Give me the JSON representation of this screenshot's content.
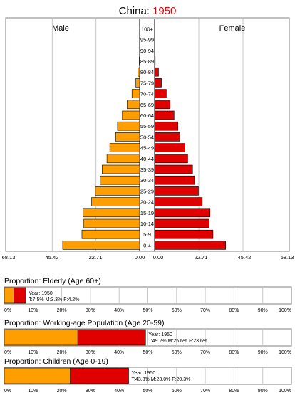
{
  "header": {
    "country": "China:",
    "year": "1950",
    "year_color": "#e00000"
  },
  "colors": {
    "male": "#ff9e00",
    "female": "#e00000",
    "bar_border": "#000000",
    "grid": "#c8c8c8"
  },
  "pyramid": {
    "male_label": "Male",
    "female_label": "Female",
    "male_ticks": [
      "68.13",
      "45.42",
      "22.71",
      "0.00"
    ],
    "female_ticks": [
      "0.00",
      "22.71",
      "45.42",
      "68.13"
    ]
  },
  "proportions": [
    {
      "title": "Proportion: Elderly (Age 60+)",
      "year_text": "Year: 1950",
      "stats_text": "T:7.5%  M:3.3%  F:4.2%"
    },
    {
      "title": "Proportion: Working-age Population (Age 20-59)",
      "year_text": "Year: 1950",
      "stats_text": "T:49.2%  M:25.6%  F:23.6%"
    },
    {
      "title": "Proportion: Children (Age 0-19)",
      "year_text": "Year: 1950",
      "stats_text": "T:43.3%  M:23.0%  F:20.3%"
    }
  ],
  "proportion_ticks": [
    "0%",
    "10%",
    "20%",
    "30%",
    "40%",
    "50%",
    "60%",
    "70%",
    "80%",
    "90%",
    "100%"
  ],
  "chart_data": [
    {
      "type": "bar",
      "orientation": "horizontal-pyramid",
      "title": "China: 1950",
      "categories": [
        "0-4",
        "5-9",
        "10-14",
        "15-19",
        "20-24",
        "25-29",
        "30-34",
        "35-39",
        "40-44",
        "45-49",
        "50-54",
        "55-59",
        "60-64",
        "65-69",
        "70-74",
        "75-79",
        "80-84",
        "85-89",
        "90-94",
        "95-99",
        "100+"
      ],
      "series": [
        {
          "name": "Male",
          "values": [
            40.0,
            30.0,
            29.0,
            29.5,
            25.0,
            23.0,
            20.5,
            19.5,
            17.0,
            15.5,
            12.5,
            11.5,
            9.0,
            6.5,
            4.0,
            2.0,
            1.0,
            0.2,
            0.05,
            0.01,
            0.0
          ]
        },
        {
          "name": "Female",
          "values": [
            36.5,
            30.0,
            28.0,
            28.5,
            24.5,
            22.5,
            20.5,
            19.5,
            17.0,
            15.5,
            13.0,
            12.0,
            10.0,
            8.0,
            6.0,
            3.5,
            2.0,
            0.3,
            0.05,
            0.01,
            0.0
          ]
        }
      ],
      "xlim": [
        0,
        68.13
      ],
      "xticks": [
        0,
        22.71,
        45.42,
        68.13
      ],
      "grid": true
    },
    {
      "type": "bar",
      "orientation": "horizontal-stacked",
      "title": "Proportion: Elderly (Age 60+)",
      "series": [
        {
          "name": "M",
          "values": [
            3.3
          ]
        },
        {
          "name": "F",
          "values": [
            4.2
          ]
        }
      ],
      "total": 7.5,
      "xlim": [
        0,
        100
      ]
    },
    {
      "type": "bar",
      "orientation": "horizontal-stacked",
      "title": "Proportion: Working-age Population (Age 20-59)",
      "series": [
        {
          "name": "M",
          "values": [
            25.6
          ]
        },
        {
          "name": "F",
          "values": [
            23.6
          ]
        }
      ],
      "total": 49.2,
      "xlim": [
        0,
        100
      ]
    },
    {
      "type": "bar",
      "orientation": "horizontal-stacked",
      "title": "Proportion: Children (Age 0-19)",
      "series": [
        {
          "name": "M",
          "values": [
            23.0
          ]
        },
        {
          "name": "F",
          "values": [
            20.3
          ]
        }
      ],
      "total": 43.3,
      "xlim": [
        0,
        100
      ]
    }
  ]
}
